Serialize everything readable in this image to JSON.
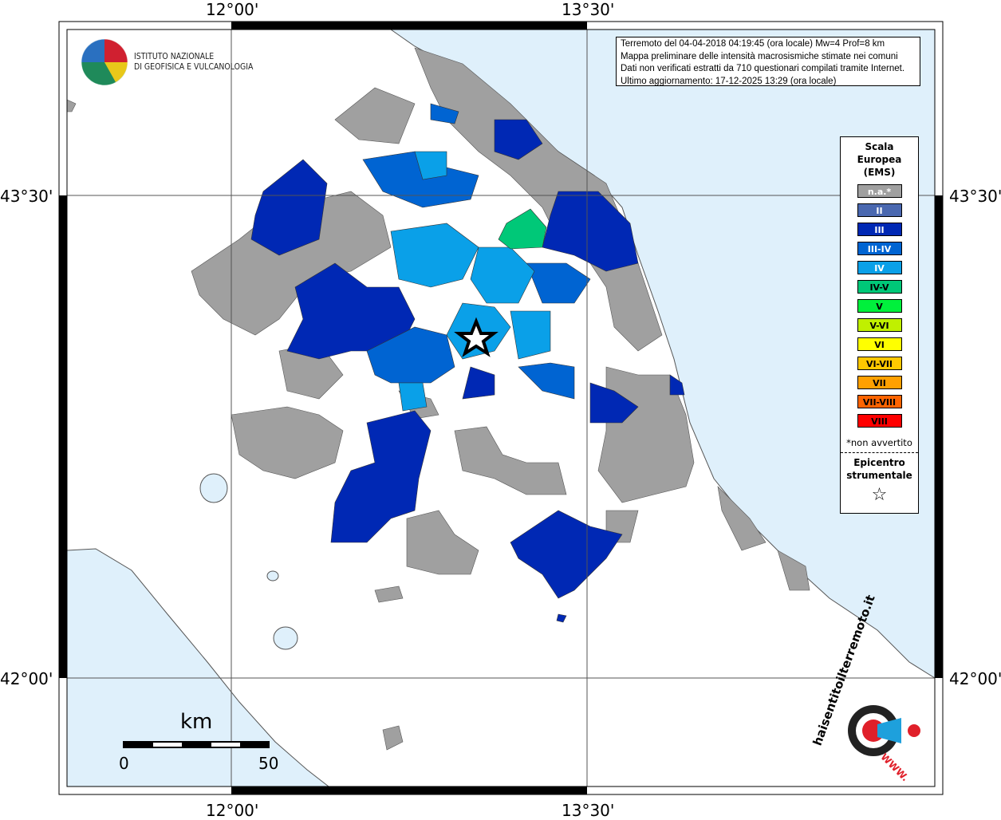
{
  "axes": {
    "lon_labels": [
      "12°00'",
      "13°30'"
    ],
    "lat_labels": [
      "43°30'",
      "42°00'"
    ]
  },
  "info_box": {
    "lines": [
      "Terremoto del 04-04-2018 04:19:45 (ora locale) Mw=4 Prof=8 km",
      "Mappa preliminare delle intensità macrosismiche stimate nei comuni",
      "Dati non verificati estratti da 710 questionari compilati tramite Internet.",
      "Ultimo aggiornamento: 17-12-2025 13:29 (ora locale)"
    ]
  },
  "legend": {
    "title": [
      "Scala",
      "Europea",
      "(EMS)"
    ],
    "items": [
      {
        "label": "n.a.*",
        "color": "#a0a0a0",
        "text": "#ffffff"
      },
      {
        "label": "II",
        "color": "#4a68b0",
        "text": "#ffffff"
      },
      {
        "label": "III",
        "color": "#0028b4",
        "text": "#ffffff"
      },
      {
        "label": "III-IV",
        "color": "#0064d2",
        "text": "#ffffff"
      },
      {
        "label": "IV",
        "color": "#0aa0e8",
        "text": "#ffffff"
      },
      {
        "label": "IV-V",
        "color": "#00c878",
        "text": "#000000"
      },
      {
        "label": "V",
        "color": "#00f03c",
        "text": "#000000"
      },
      {
        "label": "V-VI",
        "color": "#c0f000",
        "text": "#000000"
      },
      {
        "label": "VI",
        "color": "#ffff00",
        "text": "#000000"
      },
      {
        "label": "VI-VII",
        "color": "#ffc800",
        "text": "#000000"
      },
      {
        "label": "VII",
        "color": "#ffa000",
        "text": "#000000"
      },
      {
        "label": "VII-VIII",
        "color": "#ff6400",
        "text": "#000000"
      },
      {
        "label": "VIII",
        "color": "#ff0000",
        "text": "#000000"
      }
    ],
    "note": "*non avvertito",
    "epicenter": [
      "Epicentro",
      "strumentale"
    ],
    "epicenter_symbol": "☆"
  },
  "scale_bar": {
    "unit": "km",
    "min": "0",
    "max": "50"
  },
  "ingv_logo": {
    "lines": [
      "ISTITUTO NAZIONALE",
      "DI GEOFISICA E VULCANOLOGIA"
    ]
  },
  "hsit_logo": {
    "text": "haisentitoilterremoto.it",
    "www": "WWW."
  }
}
